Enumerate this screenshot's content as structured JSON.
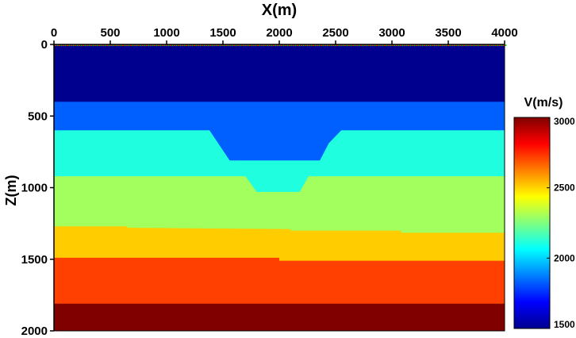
{
  "chart_data": {
    "type": "heatmap",
    "title": "",
    "xlabel": "X(m)",
    "ylabel": "Z(m)",
    "xlim": [
      0,
      4000
    ],
    "zlim": [
      0,
      2000
    ],
    "x_axis_position": "top",
    "z_axis_inverted": true,
    "x_ticks": [
      0,
      500,
      1000,
      1500,
      2000,
      2500,
      3000,
      3500,
      4000
    ],
    "z_ticks": [
      0,
      500,
      1000,
      1500,
      2000
    ],
    "x_tick_labels": [
      "0",
      "500",
      "1000",
      "1500",
      "2000",
      "2500",
      "3000",
      "3500",
      "4000"
    ],
    "z_tick_labels": [
      "0",
      "500",
      "1000",
      "1500",
      "2000"
    ],
    "grid": false,
    "colorbar": {
      "label": "V(m/s)",
      "range": [
        1500,
        3000
      ],
      "ticks": [
        1500,
        2000,
        2500,
        3000
      ],
      "tick_labels": [
        "1500",
        "2000",
        "2500",
        "3000"
      ],
      "colormap": "jet",
      "placement": "right"
    },
    "layers": [
      {
        "velocity": 1500,
        "color": "#00008f",
        "top": [
          [
            0,
            0
          ],
          [
            4000,
            0
          ]
        ]
      },
      {
        "velocity": 1800,
        "color": "#005fff",
        "top": [
          [
            0,
            400
          ],
          [
            4000,
            400
          ]
        ]
      },
      {
        "velocity": 2000,
        "color": "#1fffe0",
        "top": [
          [
            0,
            600
          ],
          [
            1380,
            600
          ],
          [
            1560,
            810
          ],
          [
            2360,
            810
          ],
          [
            2440,
            690
          ],
          [
            2550,
            600
          ],
          [
            4000,
            600
          ]
        ]
      },
      {
        "velocity": 2400,
        "color": "#a2ff5d",
        "top": [
          [
            0,
            920
          ],
          [
            1700,
            920
          ],
          [
            1800,
            1030
          ],
          [
            2180,
            1030
          ],
          [
            2260,
            920
          ],
          [
            4000,
            920
          ]
        ]
      },
      {
        "velocity": 2650,
        "color": "#ffcc00",
        "top": [
          [
            0,
            1270
          ],
          [
            650,
            1270
          ],
          [
            650,
            1280
          ],
          [
            2100,
            1290
          ],
          [
            2100,
            1300
          ],
          [
            3080,
            1300
          ],
          [
            3080,
            1315
          ],
          [
            4000,
            1315
          ]
        ]
      },
      {
        "velocity": 2800,
        "color": "#ff4000",
        "top": [
          [
            0,
            1490
          ],
          [
            2000,
            1490
          ],
          [
            2000,
            1510
          ],
          [
            4000,
            1510
          ]
        ]
      },
      {
        "velocity": 3000,
        "color": "#800000",
        "top": [
          [
            0,
            1810
          ],
          [
            4000,
            1810
          ]
        ]
      }
    ]
  }
}
